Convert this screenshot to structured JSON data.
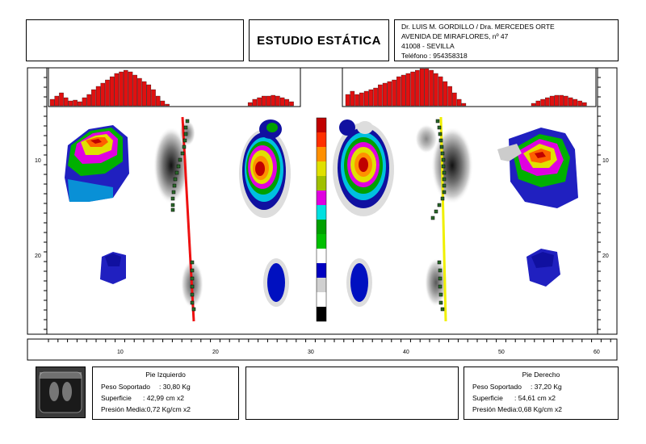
{
  "header": {
    "title": "ESTUDIO ESTÁTICA",
    "clinic_lines": [
      "Dr. LUIS M. GORDILLO / Dra. MERCEDES ORTE",
      "AVENIDA DE MIRAFLORES, nº 47",
      "41008 - SEVILLA",
      "Teléfono : 954358318"
    ]
  },
  "axes": {
    "bottom_ticks": [
      "10",
      "20",
      "30",
      "40",
      "50",
      "60"
    ],
    "side_ticks": [
      "10",
      "20"
    ]
  },
  "left_foot": {
    "heading": "Pie Izquierdo",
    "weight_label": "Peso Soportado",
    "weight_value": ": 30,80 Kg",
    "surface_label": "Superficie",
    "surface_value": ": 42,99 cm x2",
    "pressure_label": "Presión Media",
    "pressure_value": ":0,72 Kg/cm x2"
  },
  "right_foot": {
    "heading": "Pie Derecho",
    "weight_label": "Peso Soportado",
    "weight_value": ": 37,20 Kg",
    "surface_label": "Superficie",
    "surface_value": ": 54,61 cm x2",
    "pressure_label": "Presión Media",
    "pressure_value": ":0,68 Kg/cm x2"
  },
  "colors": {
    "histogram": "#e01010",
    "left_axis_line": "#ee1111",
    "right_axis_line": "#f0f000",
    "scale": [
      "#c00000",
      "#ff3000",
      "#ff9000",
      "#e0e000",
      "#a0c000",
      "#e000e0",
      "#00e0e0",
      "#00a000",
      "#00c000",
      "#ffffff",
      "#0000c0",
      "#d0d0d0",
      "#ffffff",
      "#000000"
    ]
  }
}
